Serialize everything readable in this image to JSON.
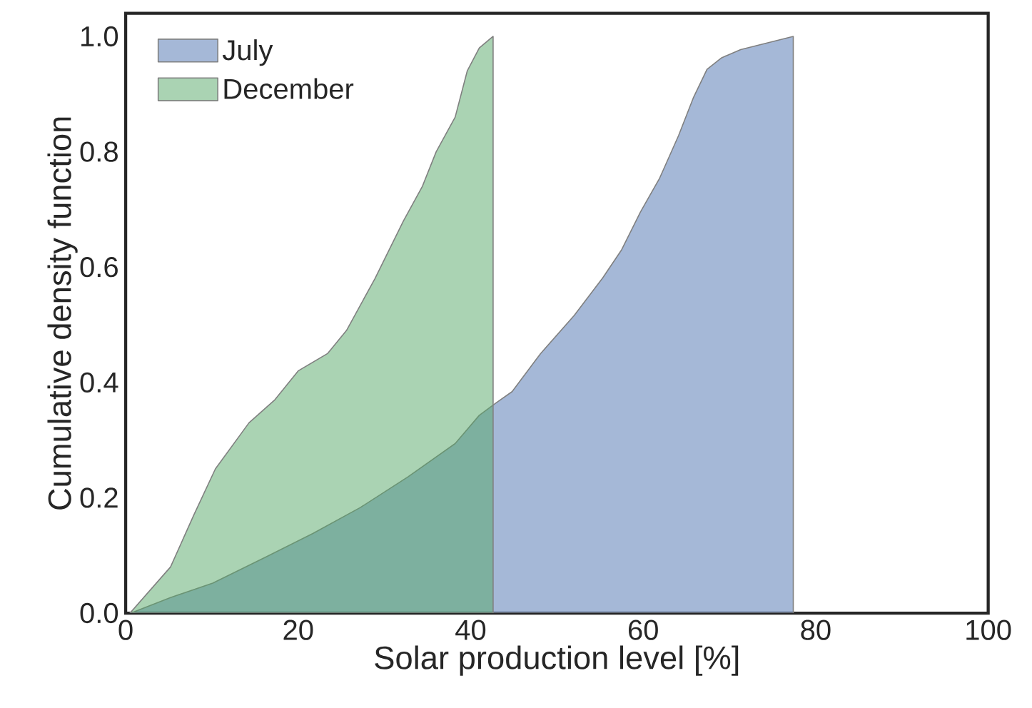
{
  "chart_data": {
    "type": "area",
    "xlabel": "Solar production level [%]",
    "ylabel": "Cumulative density function",
    "xlim": [
      0,
      100
    ],
    "ylim": [
      0,
      1.04
    ],
    "xticks": [
      0,
      20,
      40,
      60,
      80,
      100
    ],
    "yticks": [
      {
        "value": 0,
        "label": "0.0"
      },
      0.2,
      0.4,
      0.6,
      0.8,
      {
        "value": 1,
        "label": "1.0"
      }
    ],
    "grid": false,
    "legend": "top left",
    "series": [
      {
        "name": "July",
        "color": "#4c72b0",
        "x": [
          0.6,
          5.2,
          10.1,
          16.2,
          21.7,
          27.2,
          32.7,
          38.2,
          41.0,
          42.9,
          44.8,
          48.1,
          52.0,
          55.3,
          57.5,
          59.7,
          61.9,
          64.1,
          65.8,
          67.4,
          69.1,
          71.3,
          77.4
        ],
        "values": [
          0,
          0.027,
          0.052,
          0.097,
          0.138,
          0.183,
          0.236,
          0.294,
          0.343,
          0.364,
          0.384,
          0.45,
          0.516,
          0.581,
          0.63,
          0.696,
          0.754,
          0.828,
          0.893,
          0.943,
          0.963,
          0.977,
          1.0
        ]
      },
      {
        "name": "December",
        "color": "#55a868",
        "x": [
          0.5,
          5.2,
          7.9,
          10.4,
          14.3,
          17.3,
          20.0,
          23.4,
          25.6,
          28.9,
          32.2,
          34.4,
          36.0,
          38.2,
          39.6,
          41.0,
          42.6
        ],
        "values": [
          0,
          0.08,
          0.17,
          0.25,
          0.33,
          0.37,
          0.42,
          0.45,
          0.49,
          0.58,
          0.68,
          0.74,
          0.8,
          0.86,
          0.94,
          0.98,
          1.0
        ]
      }
    ]
  }
}
